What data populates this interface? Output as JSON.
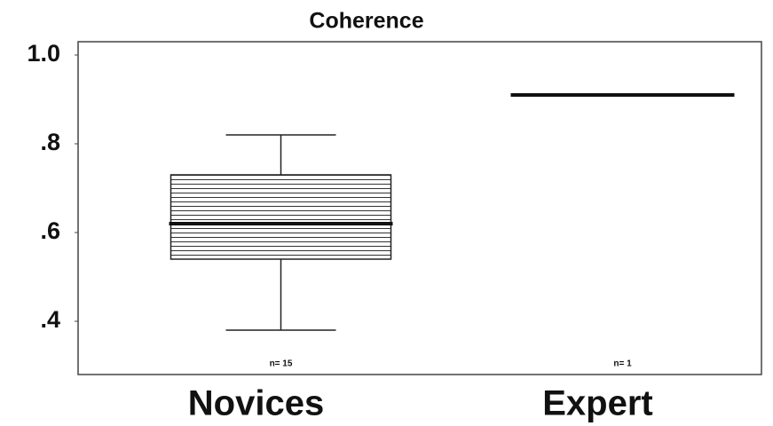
{
  "chart_data": {
    "type": "box",
    "title": "Coherence",
    "categories": [
      "Novices",
      "Expert"
    ],
    "n_labels": [
      "n= 15",
      "n= 1"
    ],
    "boxes": [
      {
        "whislo": 0.38,
        "q1": 0.54,
        "med": 0.62,
        "q3": 0.73,
        "whishi": 0.82
      },
      {
        "med": 0.91
      }
    ],
    "ylim": [
      0.28,
      1.03
    ],
    "yticks": [
      {
        "value": 1.0,
        "label": "1.0"
      },
      {
        "value": 0.8,
        "label": ".8"
      },
      {
        "value": 0.6,
        "label": ".6"
      },
      {
        "value": 0.4,
        "label": ".4"
      }
    ],
    "hatch": "horizontal",
    "color": "#222222"
  }
}
